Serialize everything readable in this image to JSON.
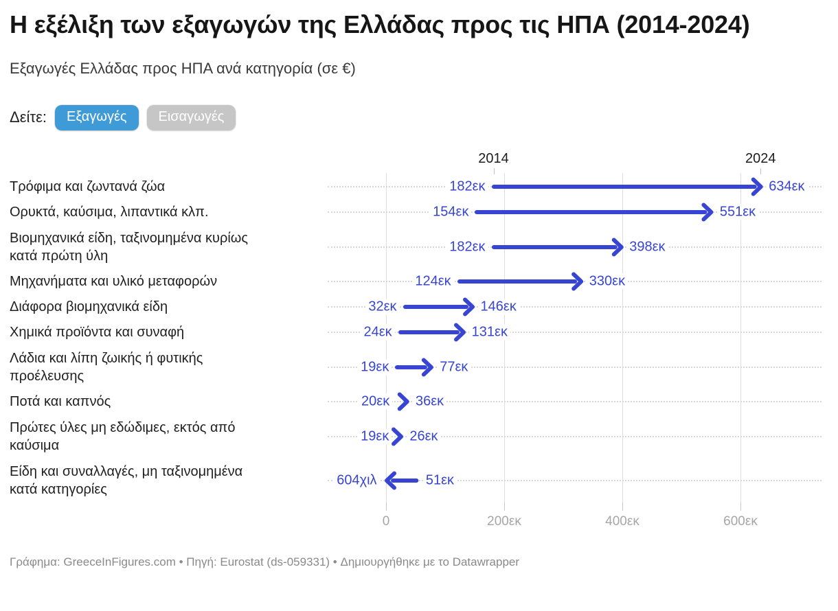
{
  "header": {
    "title": "Η εξέλιξη των εξαγωγών της Ελλάδας προς τις ΗΠΑ (2014-2024)",
    "subtitle": "Εξαγωγές Ελλάδας προς ΗΠΑ ανά κατηγορία (σε €)"
  },
  "controls": {
    "label": "Δείτε:",
    "buttons": [
      {
        "label": "Εξαγωγές",
        "active": true
      },
      {
        "label": "Εισαγωγές",
        "active": false
      }
    ]
  },
  "colors": {
    "arrow_blue": "#3745d2",
    "button_active": "#3e9bd8",
    "button_inactive": "#c6c6c6"
  },
  "chart_data": {
    "type": "arrow",
    "title": "Η εξέλιξη των εξαγωγών της Ελλάδας προς τις ΗΠΑ (2014-2024)",
    "subtitle": "Εξαγωγές Ελλάδας προς ΗΠΑ ανά κατηγορία (σε €)",
    "unit": "€ εκατομμύρια",
    "start_year": "2014",
    "end_year": "2024",
    "xlim": [
      0,
      650
    ],
    "grid": true,
    "x_axis": {
      "ticks": [
        {
          "value": 0,
          "label": "0"
        },
        {
          "value": 200,
          "label": "200εκ"
        },
        {
          "value": 400,
          "label": "400εκ"
        },
        {
          "value": 600,
          "label": "600εκ"
        }
      ]
    },
    "rows": [
      {
        "label": "Τρόφιμα και ζωντανά ζώα",
        "start": 182,
        "end": 634,
        "start_label": "182εκ",
        "end_label": "634εκ"
      },
      {
        "label": "Ορυκτά, καύσιμα, λιπαντικά κλπ.",
        "start": 154,
        "end": 551,
        "start_label": "154εκ",
        "end_label": "551εκ"
      },
      {
        "label": "Βιομηχανικά είδη, ταξινομημένα κυρίως\nκατά πρώτη ύλη",
        "start": 182,
        "end": 398,
        "start_label": "182εκ",
        "end_label": "398εκ"
      },
      {
        "label": "Μηχανήματα και υλικό μεταφορών",
        "start": 124,
        "end": 330,
        "start_label": "124εκ",
        "end_label": "330εκ"
      },
      {
        "label": "Διάφορα βιομηχανικά είδη",
        "start": 32,
        "end": 146,
        "start_label": "32εκ",
        "end_label": "146εκ"
      },
      {
        "label": "Χημικά προϊόντα και συναφή",
        "start": 24,
        "end": 131,
        "start_label": "24εκ",
        "end_label": "131εκ"
      },
      {
        "label": "Λάδια και λίπη ζωικής ή φυτικής\nπροέλευσης",
        "start": 19,
        "end": 77,
        "start_label": "19εκ",
        "end_label": "77εκ"
      },
      {
        "label": "Ποτά και καπνός",
        "start": 20,
        "end": 36,
        "start_label": "20εκ",
        "end_label": "36εκ"
      },
      {
        "label": "Πρώτες ύλες μη εδώδιμες, εκτός από\nκαύσιμα",
        "start": 19,
        "end": 26,
        "start_label": "19εκ",
        "end_label": "26εκ"
      },
      {
        "label": "Είδη και συναλλαγές, μη ταξινομημένα\nκατά κατηγορίες",
        "start": 51,
        "end": 0.604,
        "start_label": "51εκ",
        "end_label": "604χιλ"
      }
    ]
  },
  "footer": {
    "text": "Γράφημα: GreeceInFigures.com • Πηγή: Eurostat (ds-059331) • Δημιουργήθηκε με το Datawrapper"
  }
}
